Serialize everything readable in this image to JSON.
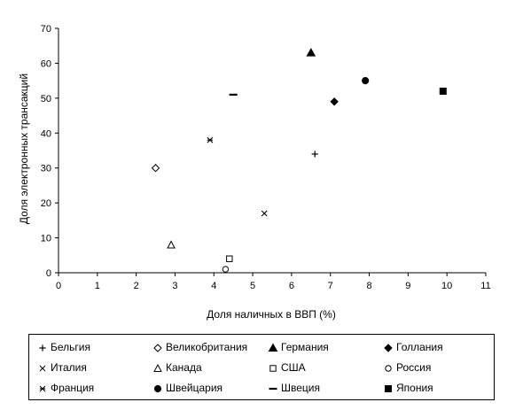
{
  "chart_data": {
    "type": "scatter",
    "title": "",
    "xlabel": "Доля наличных в ВВП (%)",
    "ylabel": "Доля электронных трансакций",
    "xlim": [
      0,
      11
    ],
    "ylim": [
      0,
      70
    ],
    "xticks": [
      0,
      1,
      2,
      3,
      4,
      5,
      6,
      7,
      8,
      9,
      10,
      11
    ],
    "yticks": [
      0,
      10,
      20,
      30,
      40,
      50,
      60,
      70
    ],
    "grid": false,
    "legend_position": "bottom",
    "series": [
      {
        "name": "Бельгия",
        "marker": "plus",
        "x": 6.6,
        "y": 34
      },
      {
        "name": "Великобритания",
        "marker": "diamond-open",
        "x": 2.5,
        "y": 30
      },
      {
        "name": "Германия",
        "marker": "triangle-filled",
        "x": 6.5,
        "y": 63
      },
      {
        "name": "Голлания",
        "marker": "diamond-filled",
        "x": 7.1,
        "y": 49
      },
      {
        "name": "Италия",
        "marker": "cross",
        "x": 5.3,
        "y": 17
      },
      {
        "name": "Канада",
        "marker": "triangle-open",
        "x": 2.9,
        "y": 8
      },
      {
        "name": "США",
        "marker": "square-open",
        "x": 4.4,
        "y": 4
      },
      {
        "name": "Россия",
        "marker": "circle-open",
        "x": 4.3,
        "y": 1
      },
      {
        "name": "Франция",
        "marker": "asterisk",
        "x": 3.9,
        "y": 38
      },
      {
        "name": "Швейцария",
        "marker": "circle-filled",
        "x": 7.9,
        "y": 55
      },
      {
        "name": "Швеция",
        "marker": "dash",
        "x": 4.5,
        "y": 51
      },
      {
        "name": "Япония",
        "marker": "square-filled",
        "x": 9.9,
        "y": 52
      }
    ]
  }
}
